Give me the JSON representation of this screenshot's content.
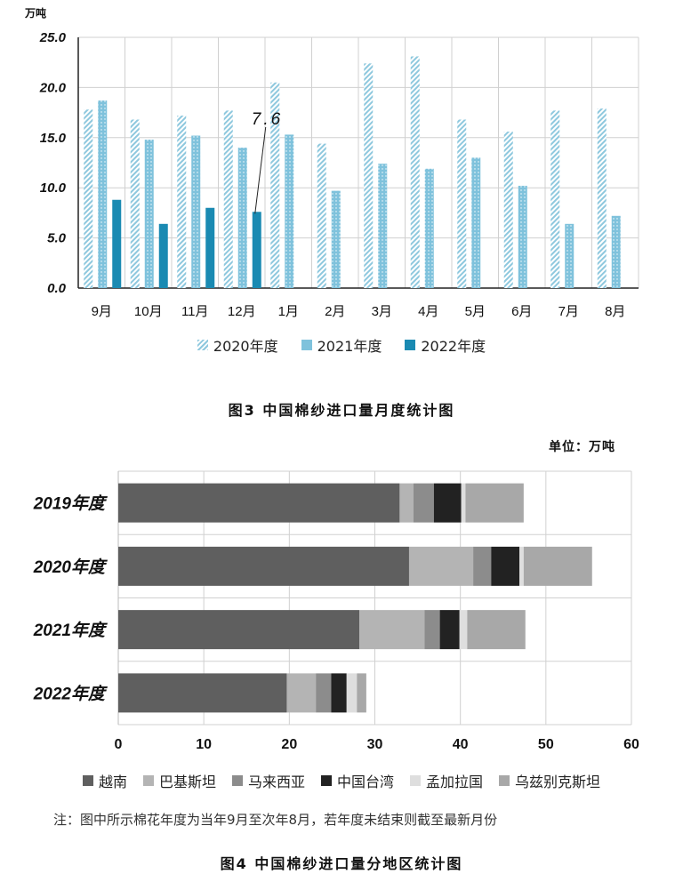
{
  "figure3": {
    "unit": "万吨",
    "caption": "图3  中国棉纱进口量月度统计图",
    "annotation": "7.6",
    "chart_data": {
      "type": "bar",
      "categories": [
        "9月",
        "10月",
        "11月",
        "12月",
        "1月",
        "2月",
        "3月",
        "4月",
        "5月",
        "6月",
        "7月",
        "8月"
      ],
      "series": [
        {
          "name": "2020年度",
          "values": [
            17.8,
            16.8,
            17.2,
            17.7,
            20.5,
            14.4,
            22.4,
            23.1,
            16.8,
            15.6,
            17.7,
            17.9
          ]
        },
        {
          "name": "2021年度",
          "values": [
            18.7,
            14.8,
            15.2,
            14.0,
            15.3,
            9.7,
            12.4,
            11.9,
            13.0,
            10.2,
            6.4,
            7.2
          ]
        },
        {
          "name": "2022年度",
          "values": [
            8.8,
            6.4,
            8.0,
            7.6,
            null,
            null,
            null,
            null,
            null,
            null,
            null,
            null
          ]
        }
      ],
      "yticks": [
        "0.0",
        "5.0",
        "10.0",
        "15.0",
        "20.0",
        "25.0"
      ],
      "ylim": [
        0,
        25
      ],
      "grid": true,
      "legend_position": "bottom",
      "colors": {
        "2020年度": "#bfe1ee",
        "2021年度": "#7fc2dc",
        "2022年度": "#1a8ab2"
      }
    }
  },
  "figure4": {
    "unit": "单位：万吨",
    "caption": "图4  中国棉纱进口量分地区统计图",
    "note": "注：图中所示棉花年度为当年9月至次年8月，若年度未结束则截至最新月份",
    "chart_data": {
      "type": "bar",
      "orientation": "horizontal",
      "stacked": true,
      "categories": [
        "2019年度",
        "2020年度",
        "2021年度",
        "2022年度"
      ],
      "series": [
        {
          "name": "越南",
          "values": [
            32.9,
            34.0,
            28.2,
            19.7
          ]
        },
        {
          "name": "巴基斯坦",
          "values": [
            1.6,
            7.5,
            7.6,
            3.4
          ]
        },
        {
          "name": "马来西亚",
          "values": [
            2.4,
            2.1,
            1.8,
            1.8
          ]
        },
        {
          "name": "中国台湾",
          "values": [
            3.2,
            3.3,
            2.3,
            1.8
          ]
        },
        {
          "name": "孟加拉国",
          "values": [
            0.5,
            0.5,
            0.9,
            1.2
          ]
        },
        {
          "name": "乌兹别克斯坦",
          "values": [
            6.8,
            8.0,
            6.8,
            1.1
          ]
        }
      ],
      "xticks": [
        "0",
        "10",
        "20",
        "30",
        "40",
        "50",
        "60"
      ],
      "xlim": [
        0,
        60
      ],
      "grid": true,
      "legend_position": "bottom",
      "colors": {
        "越南": "#5f5f5f",
        "巴基斯坦": "#b4b4b4",
        "马来西亚": "#8c8c8c",
        "中国台湾": "#222222",
        "孟加拉国": "#dedede",
        "乌兹别克斯坦": "#a8a8a8"
      }
    }
  }
}
